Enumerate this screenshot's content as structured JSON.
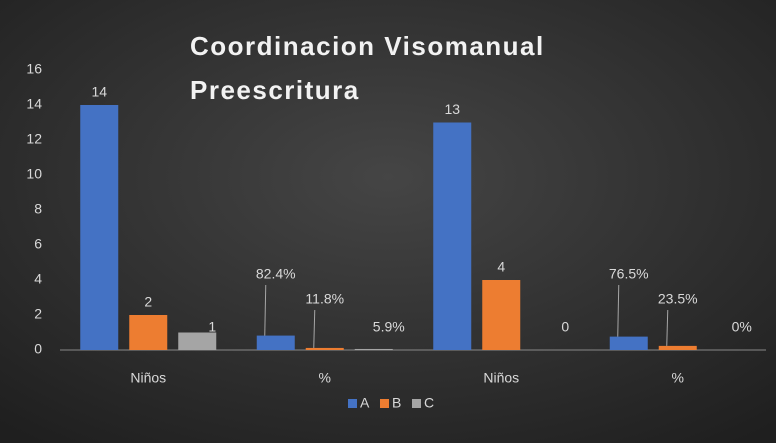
{
  "chart_data": {
    "type": "bar",
    "title": [
      "Coordinacion Visomanual",
      "Preescritura"
    ],
    "categories": [
      "Niños",
      "%",
      "Niños",
      "%"
    ],
    "series": [
      {
        "name": "A",
        "color": "#4472c4",
        "values": [
          14,
          0.824,
          13,
          0.765
        ],
        "value_labels": [
          "14",
          "82.4%",
          "13",
          "76.5%"
        ]
      },
      {
        "name": "B",
        "color": "#ed7d31",
        "values": [
          2,
          0.118,
          4,
          0.235
        ],
        "value_labels": [
          "2",
          "11.8%",
          "4",
          "23.5%"
        ]
      },
      {
        "name": "C",
        "color": "#a5a5a5",
        "values": [
          1,
          0.059,
          0,
          0
        ],
        "value_labels": [
          "1",
          "5.9%",
          "0",
          "0%"
        ]
      }
    ],
    "ylim": [
      0,
      16
    ],
    "yticks": [
      0,
      2,
      4,
      6,
      8,
      10,
      12,
      14,
      16
    ],
    "grid": false,
    "legend": "bottom"
  }
}
